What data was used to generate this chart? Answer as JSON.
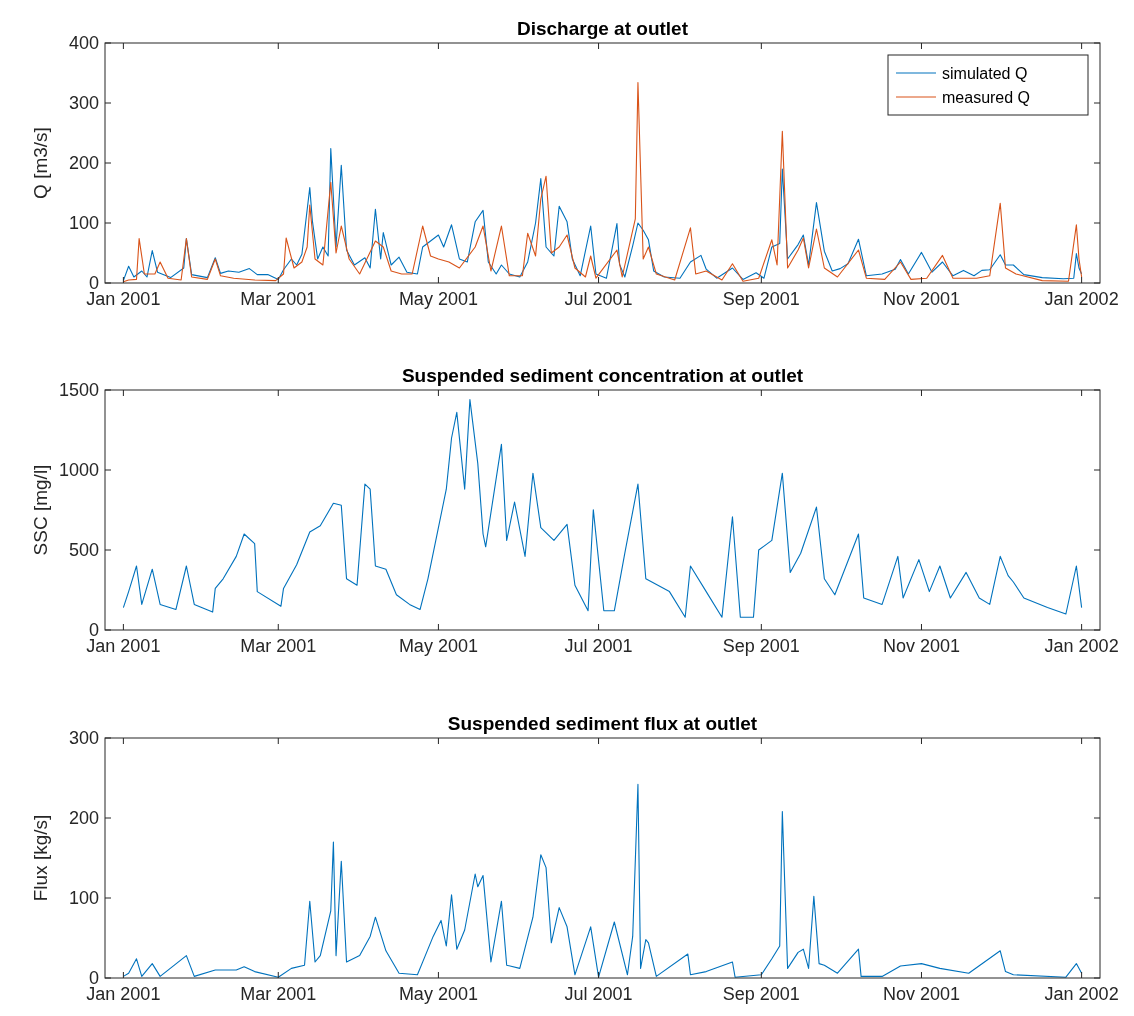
{
  "chart_data": [
    {
      "type": "line",
      "title": "Discharge at outlet",
      "ylabel": "Q [m3/s]",
      "legend": "top right",
      "xlim": [
        "2000-12-25",
        "2002-01-08"
      ],
      "xticks": [
        {
          "value": "2001-01-01",
          "label": "Jan 2001"
        },
        {
          "value": "2001-03-01",
          "label": "Mar 2001"
        },
        {
          "value": "2001-05-01",
          "label": "May 2001"
        },
        {
          "value": "2001-07-01",
          "label": "Jul 2001"
        },
        {
          "value": "2001-09-01",
          "label": "Sep 2001"
        },
        {
          "value": "2001-11-01",
          "label": "Nov 2001"
        },
        {
          "value": "2002-01-01",
          "label": "Jan 2002"
        }
      ],
      "ylim": [
        0,
        400
      ],
      "yticks": [
        0,
        100,
        200,
        300,
        400
      ],
      "series": [
        {
          "name": "simulated Q",
          "color": "#0072bd",
          "x": [
            "2001-01-01",
            "2001-01-03",
            "2001-01-05",
            "2001-01-08",
            "2001-01-10",
            "2001-01-12",
            "2001-01-14",
            "2001-01-19",
            "2001-01-24",
            "2001-01-25",
            "2001-01-27",
            "2001-02-02",
            "2001-02-05",
            "2001-02-07",
            "2001-02-10",
            "2001-02-14",
            "2001-02-18",
            "2001-02-21",
            "2001-02-25",
            "2001-03-01",
            "2001-03-03",
            "2001-03-06",
            "2001-03-08",
            "2001-03-10",
            "2001-03-13",
            "2001-03-14",
            "2001-03-16",
            "2001-03-18",
            "2001-03-20",
            "2001-03-21",
            "2001-03-23",
            "2001-03-25",
            "2001-03-27",
            "2001-03-30",
            "2001-04-03",
            "2001-04-05",
            "2001-04-07",
            "2001-04-09",
            "2001-04-10",
            "2001-04-13",
            "2001-04-16",
            "2001-04-19",
            "2001-04-23",
            "2001-04-25",
            "2001-04-28",
            "2001-05-01",
            "2001-05-03",
            "2001-05-06",
            "2001-05-09",
            "2001-05-12",
            "2001-05-15",
            "2001-05-18",
            "2001-05-20",
            "2001-05-23",
            "2001-05-25",
            "2001-05-28",
            "2001-06-01",
            "2001-06-04",
            "2001-06-07",
            "2001-06-09",
            "2001-06-11",
            "2001-06-14",
            "2001-06-16",
            "2001-06-19",
            "2001-06-21",
            "2001-06-24",
            "2001-06-28",
            "2001-06-30",
            "2001-07-04",
            "2001-07-08",
            "2001-07-09",
            "2001-07-11",
            "2001-07-14",
            "2001-07-16",
            "2001-07-18",
            "2001-07-20",
            "2001-07-22",
            "2001-07-26",
            "2001-08-01",
            "2001-08-05",
            "2001-08-09",
            "2001-08-11",
            "2001-08-15",
            "2001-08-21",
            "2001-08-25",
            "2001-08-30",
            "2001-09-02",
            "2001-09-05",
            "2001-09-08",
            "2001-09-09",
            "2001-09-11",
            "2001-09-15",
            "2001-09-17",
            "2001-09-19",
            "2001-09-22",
            "2001-09-25",
            "2001-09-28",
            "2001-10-01",
            "2001-10-04",
            "2001-10-08",
            "2001-10-11",
            "2001-10-17",
            "2001-10-22",
            "2001-10-24",
            "2001-10-27",
            "2001-11-01",
            "2001-11-05",
            "2001-11-09",
            "2001-11-13",
            "2001-11-17",
            "2001-11-21",
            "2001-11-24",
            "2001-11-27",
            "2001-12-01",
            "2001-12-03",
            "2001-12-06",
            "2001-12-10",
            "2001-12-17",
            "2001-12-25",
            "2001-12-29",
            "2001-12-30",
            "2001-12-31",
            "2002-01-01"
          ],
          "values": [
            4,
            28,
            10,
            20,
            10,
            54,
            18,
            9,
            25,
            74,
            14,
            9,
            42,
            16,
            20,
            18,
            24,
            14,
            14,
            6,
            22,
            40,
            30,
            48,
            159,
            103,
            40,
            60,
            45,
            224,
            60,
            196,
            55,
            30,
            42,
            25,
            123,
            40,
            84,
            30,
            43,
            18,
            15,
            60,
            70,
            80,
            60,
            97,
            40,
            35,
            102,
            121,
            35,
            15,
            30,
            15,
            10,
            35,
            100,
            174,
            60,
            45,
            128,
            102,
            40,
            12,
            95,
            15,
            8,
            99,
            31,
            10,
            62,
            100,
            88,
            72,
            20,
            10,
            8,
            35,
            46,
            23,
            8,
            25,
            6,
            17,
            8,
            60,
            66,
            190,
            40,
            64,
            80,
            30,
            134,
            53,
            20,
            24,
            32,
            73,
            12,
            15,
            23,
            39,
            15,
            51,
            18,
            35,
            12,
            21,
            12,
            21,
            22,
            47,
            30,
            30,
            14,
            9,
            7,
            8,
            49,
            25,
            15
          ]
        },
        {
          "name": "measured Q",
          "color": "#d95319",
          "x": [
            "2001-01-01",
            "2001-01-03",
            "2001-01-06",
            "2001-01-07",
            "2001-01-09",
            "2001-01-13",
            "2001-01-15",
            "2001-01-18",
            "2001-01-23",
            "2001-01-25",
            "2001-01-27",
            "2001-02-02",
            "2001-02-05",
            "2001-02-07",
            "2001-02-12",
            "2001-02-20",
            "2001-02-28",
            "2001-03-03",
            "2001-03-04",
            "2001-03-07",
            "2001-03-10",
            "2001-03-12",
            "2001-03-13",
            "2001-03-15",
            "2001-03-18",
            "2001-03-21",
            "2001-03-23",
            "2001-03-25",
            "2001-03-28",
            "2001-04-01",
            "2001-04-07",
            "2001-04-10",
            "2001-04-13",
            "2001-04-17",
            "2001-04-21",
            "2001-04-25",
            "2001-04-28",
            "2001-05-01",
            "2001-05-05",
            "2001-05-09",
            "2001-05-15",
            "2001-05-18",
            "2001-05-21",
            "2001-05-25",
            "2001-05-28",
            "2001-06-02",
            "2001-06-04",
            "2001-06-07",
            "2001-06-09",
            "2001-06-11",
            "2001-06-13",
            "2001-06-16",
            "2001-06-19",
            "2001-06-22",
            "2001-06-26",
            "2001-06-28",
            "2001-06-30",
            "2001-07-08",
            "2001-07-10",
            "2001-07-15",
            "2001-07-16",
            "2001-07-18",
            "2001-07-20",
            "2001-07-23",
            "2001-07-30",
            "2001-08-05",
            "2001-08-07",
            "2001-08-11",
            "2001-08-17",
            "2001-08-21",
            "2001-08-25",
            "2001-08-31",
            "2001-09-05",
            "2001-09-07",
            "2001-09-09",
            "2001-09-11",
            "2001-09-15",
            "2001-09-17",
            "2001-09-19",
            "2001-09-22",
            "2001-09-25",
            "2001-09-30",
            "2001-10-08",
            "2001-10-11",
            "2001-10-18",
            "2001-10-24",
            "2001-10-28",
            "2001-11-03",
            "2001-11-09",
            "2001-11-13",
            "2001-11-22",
            "2001-11-27",
            "2001-12-01",
            "2001-12-03",
            "2001-12-07",
            "2001-12-17",
            "2001-12-27",
            "2001-12-30",
            "2001-12-31",
            "2002-01-01"
          ],
          "values": [
            2,
            5,
            6,
            74,
            15,
            15,
            35,
            8,
            5,
            74,
            10,
            6,
            40,
            12,
            8,
            5,
            4,
            15,
            75,
            25,
            35,
            60,
            130,
            40,
            30,
            168,
            50,
            95,
            40,
            15,
            70,
            60,
            20,
            15,
            15,
            95,
            45,
            40,
            35,
            25,
            60,
            95,
            20,
            95,
            12,
            12,
            83,
            45,
            140,
            178,
            50,
            60,
            80,
            25,
            10,
            45,
            8,
            55,
            10,
            107,
            334,
            40,
            60,
            15,
            5,
            92,
            15,
            20,
            5,
            32,
            3,
            8,
            72,
            30,
            253,
            25,
            55,
            75,
            25,
            90,
            25,
            10,
            55,
            8,
            6,
            35,
            6,
            8,
            46,
            8,
            8,
            12,
            133,
            25,
            15,
            4,
            3,
            97,
            40,
            10
          ]
        }
      ]
    },
    {
      "type": "line",
      "title": "Suspended sediment concentration at outlet",
      "ylabel": "SSC [mg/l]",
      "xlim": [
        "2000-12-25",
        "2002-01-08"
      ],
      "xticks": [
        {
          "value": "2001-01-01",
          "label": "Jan 2001"
        },
        {
          "value": "2001-03-01",
          "label": "Mar 2001"
        },
        {
          "value": "2001-05-01",
          "label": "May 2001"
        },
        {
          "value": "2001-07-01",
          "label": "Jul 2001"
        },
        {
          "value": "2001-09-01",
          "label": "Sep 2001"
        },
        {
          "value": "2001-11-01",
          "label": "Nov 2001"
        },
        {
          "value": "2002-01-01",
          "label": "Jan 2002"
        }
      ],
      "ylim": [
        0,
        1500
      ],
      "yticks": [
        0,
        500,
        1000,
        1500
      ],
      "series": [
        {
          "color": "#0072bd",
          "x": [
            "2001-01-01",
            "2001-01-03",
            "2001-01-06",
            "2001-01-08",
            "2001-01-12",
            "2001-01-15",
            "2001-01-21",
            "2001-01-25",
            "2001-01-28",
            "2001-02-04",
            "2001-02-05",
            "2001-02-08",
            "2001-02-13",
            "2001-02-16",
            "2001-02-20",
            "2001-02-21",
            "2001-03-02",
            "2001-03-03",
            "2001-03-08",
            "2001-03-13",
            "2001-03-17",
            "2001-03-22",
            "2001-03-25",
            "2001-03-27",
            "2001-03-31",
            "2001-04-03",
            "2001-04-05",
            "2001-04-07",
            "2001-04-11",
            "2001-04-15",
            "2001-04-20",
            "2001-04-24",
            "2001-04-27",
            "2001-05-01",
            "2001-05-04",
            "2001-05-06",
            "2001-05-08",
            "2001-05-11",
            "2001-05-13",
            "2001-05-16",
            "2001-05-18",
            "2001-05-19",
            "2001-05-25",
            "2001-05-27",
            "2001-05-30",
            "2001-06-03",
            "2001-06-06",
            "2001-06-09",
            "2001-06-14",
            "2001-06-19",
            "2001-06-22",
            "2001-06-27",
            "2001-06-29",
            "2001-07-03",
            "2001-07-07",
            "2001-07-11",
            "2001-07-16",
            "2001-07-19",
            "2001-07-28",
            "2001-08-03",
            "2001-08-05",
            "2001-08-11",
            "2001-08-17",
            "2001-08-21",
            "2001-08-24",
            "2001-08-29",
            "2001-08-31",
            "2001-09-05",
            "2001-09-09",
            "2001-09-12",
            "2001-09-16",
            "2001-09-22",
            "2001-09-25",
            "2001-09-29",
            "2001-10-08",
            "2001-10-10",
            "2001-10-17",
            "2001-10-23",
            "2001-10-25",
            "2001-10-31",
            "2001-11-04",
            "2001-11-08",
            "2001-11-12",
            "2001-11-18",
            "2001-11-23",
            "2001-11-27",
            "2001-12-01",
            "2001-12-04",
            "2001-12-06",
            "2001-12-10",
            "2001-12-19",
            "2001-12-26",
            "2001-12-30",
            "2002-01-01"
          ],
          "values": [
            140,
            240,
            400,
            160,
            380,
            160,
            128,
            400,
            160,
            112,
            260,
            320,
            460,
            600,
            540,
            240,
            148,
            260,
            408,
            612,
            652,
            792,
            780,
            320,
            280,
            912,
            880,
            400,
            380,
            220,
            160,
            128,
            320,
            640,
            880,
            1200,
            1360,
            880,
            1440,
            1040,
            600,
            520,
            1160,
            560,
            800,
            460,
            980,
            640,
            560,
            660,
            280,
            120,
            752,
            120,
            120,
            480,
            912,
            320,
            240,
            80,
            400,
            240,
            80,
            708,
            80,
            80,
            500,
            560,
            980,
            360,
            480,
            768,
            320,
            220,
            600,
            200,
            160,
            460,
            200,
            440,
            240,
            400,
            200,
            360,
            200,
            160,
            460,
            340,
            300,
            200,
            140,
            100,
            400,
            140
          ]
        }
      ]
    },
    {
      "type": "line",
      "title": "Suspended sediment flux at outlet",
      "ylabel": "Flux [kg/s]",
      "xlim": [
        "2000-12-25",
        "2002-01-08"
      ],
      "xticks": [
        {
          "value": "2001-01-01",
          "label": "Jan 2001"
        },
        {
          "value": "2001-03-01",
          "label": "Mar 2001"
        },
        {
          "value": "2001-05-01",
          "label": "May 2001"
        },
        {
          "value": "2001-07-01",
          "label": "Jul 2001"
        },
        {
          "value": "2001-09-01",
          "label": "Sep 2001"
        },
        {
          "value": "2001-11-01",
          "label": "Nov 2001"
        },
        {
          "value": "2002-01-01",
          "label": "Jan 2002"
        }
      ],
      "ylim": [
        0,
        300
      ],
      "yticks": [
        0,
        100,
        200,
        300
      ],
      "series": [
        {
          "color": "#0072bd",
          "x": [
            "2001-01-01",
            "2001-01-03",
            "2001-01-06",
            "2001-01-08",
            "2001-01-12",
            "2001-01-15",
            "2001-01-25",
            "2001-01-28",
            "2001-02-05",
            "2001-02-13",
            "2001-02-16",
            "2001-02-20",
            "2001-03-01",
            "2001-03-06",
            "2001-03-11",
            "2001-03-13",
            "2001-03-15",
            "2001-03-17",
            "2001-03-21",
            "2001-03-22",
            "2001-03-23",
            "2001-03-25",
            "2001-03-27",
            "2001-04-01",
            "2001-04-05",
            "2001-04-07",
            "2001-04-11",
            "2001-04-16",
            "2001-04-23",
            "2001-04-26",
            "2001-04-29",
            "2001-05-02",
            "2001-05-04",
            "2001-05-06",
            "2001-05-08",
            "2001-05-11",
            "2001-05-15",
            "2001-05-16",
            "2001-05-18",
            "2001-05-21",
            "2001-05-25",
            "2001-05-27",
            "2001-06-01",
            "2001-06-06",
            "2001-06-09",
            "2001-06-11",
            "2001-06-13",
            "2001-06-16",
            "2001-06-19",
            "2001-06-22",
            "2001-06-28",
            "2001-07-01",
            "2001-07-07",
            "2001-07-12",
            "2001-07-14",
            "2001-07-16",
            "2001-07-17",
            "2001-07-19",
            "2001-07-20",
            "2001-07-23",
            "2001-08-04",
            "2001-08-05",
            "2001-08-11",
            "2001-08-21",
            "2001-08-22",
            "2001-09-01",
            "2001-09-05",
            "2001-09-08",
            "2001-09-09",
            "2001-09-11",
            "2001-09-15",
            "2001-09-17",
            "2001-09-19",
            "2001-09-21",
            "2001-09-23",
            "2001-09-25",
            "2001-09-30",
            "2001-10-08",
            "2001-10-09",
            "2001-10-17",
            "2001-10-24",
            "2001-11-01",
            "2001-11-08",
            "2001-11-19",
            "2001-12-01",
            "2001-12-03",
            "2001-12-06",
            "2001-12-26",
            "2001-12-30",
            "2002-01-01"
          ],
          "values": [
            2,
            6,
            24,
            2,
            18,
            2,
            28,
            2,
            10,
            10,
            14,
            8,
            1,
            12,
            16,
            96,
            20,
            28,
            84,
            170,
            28,
            146,
            20,
            28,
            52,
            76,
            34,
            6,
            4,
            28,
            52,
            72,
            40,
            104,
            36,
            60,
            130,
            114,
            128,
            20,
            96,
            16,
            12,
            76,
            154,
            138,
            44,
            88,
            64,
            4,
            64,
            1,
            70,
            4,
            52,
            242,
            12,
            48,
            44,
            2,
            30,
            4,
            8,
            20,
            1,
            4,
            24,
            40,
            208,
            12,
            32,
            36,
            12,
            102,
            18,
            16,
            6,
            36,
            2,
            2,
            15,
            18,
            12,
            6,
            34,
            8,
            4,
            1,
            18,
            6
          ]
        }
      ]
    }
  ]
}
